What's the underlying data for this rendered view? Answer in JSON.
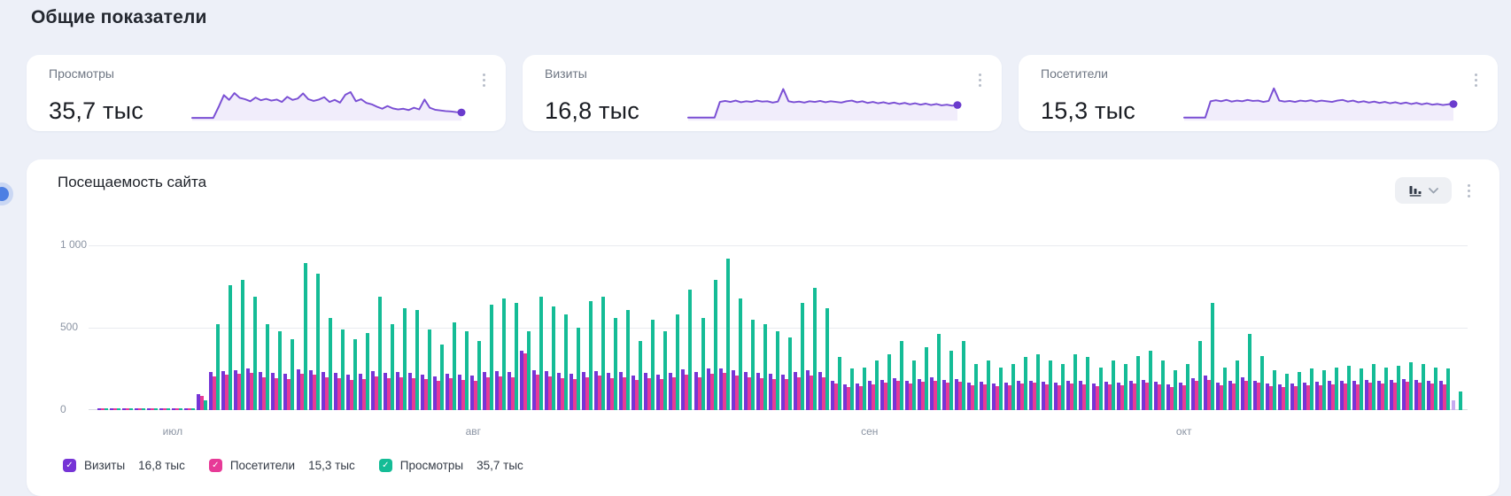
{
  "page": {
    "title": "Общие показатели"
  },
  "colors": {
    "background": "#edf0f8",
    "card": "#ffffff",
    "spark_line": "#7a4fd4",
    "spark_fill": "rgba(122,79,212,0.10)",
    "spark_dot": "#6a3bcd",
    "visits_purple": "#7634d6",
    "visitors_pink": "#e73a97",
    "views_green": "#14bc96",
    "partial_lavender": "#c6abf0",
    "gridline": "#e9ebef",
    "axis_text": "#8b94a3"
  },
  "metric_cards": [
    {
      "label": "Просмотры",
      "value": "35,7 тыс",
      "spark": [
        3,
        3,
        3,
        3,
        3,
        35,
        70,
        56,
        76,
        62,
        58,
        52,
        63,
        55,
        59,
        54,
        57,
        50,
        65,
        56,
        60,
        75,
        58,
        53,
        57,
        64,
        50,
        56,
        48,
        71,
        79,
        52,
        58,
        47,
        43,
        36,
        30,
        38,
        31,
        28,
        30,
        26,
        33,
        28,
        57,
        33,
        27,
        25,
        23,
        22,
        20,
        19
      ]
    },
    {
      "label": "Визиты",
      "value": "16,8 тыс",
      "spark": [
        4,
        4,
        4,
        4,
        4,
        4,
        50,
        53,
        50,
        54,
        49,
        52,
        50,
        54,
        51,
        52,
        48,
        51,
        88,
        52,
        49,
        51,
        48,
        52,
        50,
        53,
        49,
        52,
        50,
        48,
        52,
        54,
        49,
        52,
        47,
        50,
        46,
        49,
        45,
        48,
        44,
        47,
        43,
        46,
        42,
        45,
        41,
        44,
        40,
        42,
        39,
        41
      ]
    },
    {
      "label": "Посетители",
      "value": "15,3 тыс",
      "spark": [
        4,
        4,
        4,
        4,
        4,
        52,
        55,
        52,
        56,
        51,
        54,
        52,
        56,
        53,
        54,
        50,
        53,
        90,
        54,
        51,
        53,
        50,
        54,
        52,
        55,
        51,
        54,
        52,
        50,
        54,
        56,
        51,
        54,
        49,
        52,
        48,
        51,
        47,
        50,
        46,
        49,
        45,
        48,
        44,
        47,
        43,
        46,
        42,
        44,
        41,
        43,
        44
      ]
    }
  ],
  "chart_widget": {
    "title": "Посещаемость сайта",
    "legend": [
      {
        "label": "Визиты",
        "value": "16,8 тыс",
        "color": "#7634d6"
      },
      {
        "label": "Посетители",
        "value": "15,3 тыс",
        "color": "#e73a97"
      },
      {
        "label": "Просмотры",
        "value": "35,7 тыс",
        "color": "#14bc96"
      }
    ]
  },
  "chart_data": {
    "type": "bar",
    "title": "Посещаемость сайта",
    "ylim": [
      0,
      1100
    ],
    "grid": true,
    "legend_position": "bottom",
    "y_ticks": [
      {
        "value": 0,
        "label": "0"
      },
      {
        "value": 500,
        "label": "500"
      },
      {
        "value": 1000,
        "label": "1 000"
      }
    ],
    "x_axis_months": [
      {
        "label": "июл",
        "pct": 5.5
      },
      {
        "label": "авг",
        "pct": 27.5
      },
      {
        "label": "сен",
        "pct": 56.5
      },
      {
        "label": "окт",
        "pct": 79.5
      }
    ],
    "last_day_partial": true,
    "partial_color": "#c6abf0",
    "series": [
      {
        "name": "Визиты",
        "color": "#7634d6",
        "values": [
          6,
          5,
          7,
          5,
          6,
          5,
          6,
          5,
          95,
          230,
          235,
          240,
          250,
          230,
          225,
          220,
          245,
          240,
          230,
          225,
          215,
          220,
          235,
          225,
          230,
          225,
          215,
          205,
          220,
          215,
          210,
          230,
          235,
          230,
          360,
          240,
          235,
          225,
          220,
          230,
          235,
          225,
          230,
          210,
          225,
          215,
          225,
          245,
          230,
          250,
          255,
          240,
          230,
          225,
          220,
          215,
          230,
          240,
          230,
          180,
          155,
          160,
          175,
          185,
          195,
          180,
          190,
          200,
          185,
          190,
          165,
          170,
          160,
          165,
          175,
          180,
          170,
          165,
          180,
          175,
          160,
          170,
          165,
          175,
          185,
          170,
          155,
          165,
          195,
          210,
          165,
          175,
          200,
          180,
          160,
          155,
          160,
          165,
          170,
          175,
          180,
          175,
          185,
          180,
          185,
          190,
          185,
          180,
          175,
          60
        ]
      },
      {
        "name": "Посетители",
        "color": "#e73a97",
        "values": [
          5,
          4,
          5,
          4,
          5,
          4,
          5,
          4,
          85,
          205,
          215,
          220,
          225,
          200,
          195,
          190,
          220,
          215,
          200,
          195,
          185,
          190,
          205,
          195,
          200,
          195,
          190,
          180,
          195,
          185,
          180,
          200,
          205,
          200,
          345,
          215,
          205,
          195,
          190,
          200,
          210,
          195,
          200,
          185,
          195,
          190,
          200,
          215,
          200,
          220,
          225,
          210,
          200,
          195,
          190,
          190,
          200,
          210,
          200,
          160,
          140,
          145,
          155,
          165,
          175,
          160,
          170,
          180,
          165,
          170,
          150,
          155,
          145,
          150,
          160,
          165,
          155,
          150,
          160,
          155,
          145,
          155,
          150,
          160,
          165,
          155,
          140,
          150,
          175,
          185,
          150,
          160,
          180,
          165,
          145,
          140,
          145,
          150,
          150,
          155,
          160,
          155,
          165,
          160,
          165,
          170,
          165,
          160,
          155,
          0
        ]
      },
      {
        "name": "Просмотры",
        "color": "#14bc96",
        "values": [
          10,
          8,
          12,
          9,
          11,
          8,
          10,
          9,
          60,
          520,
          760,
          790,
          690,
          520,
          480,
          430,
          890,
          830,
          560,
          490,
          430,
          470,
          690,
          520,
          620,
          610,
          490,
          400,
          530,
          480,
          420,
          640,
          680,
          650,
          480,
          690,
          630,
          580,
          500,
          660,
          690,
          560,
          610,
          420,
          550,
          480,
          580,
          730,
          560,
          790,
          920,
          680,
          550,
          520,
          480,
          440,
          650,
          740,
          620,
          320,
          250,
          260,
          300,
          340,
          420,
          300,
          380,
          460,
          360,
          420,
          280,
          300,
          260,
          280,
          320,
          340,
          300,
          280,
          340,
          320,
          260,
          300,
          280,
          330,
          360,
          300,
          240,
          280,
          420,
          650,
          260,
          300,
          460,
          330,
          240,
          220,
          230,
          250,
          240,
          260,
          270,
          250,
          280,
          260,
          270,
          290,
          280,
          260,
          250,
          115
        ]
      }
    ]
  }
}
